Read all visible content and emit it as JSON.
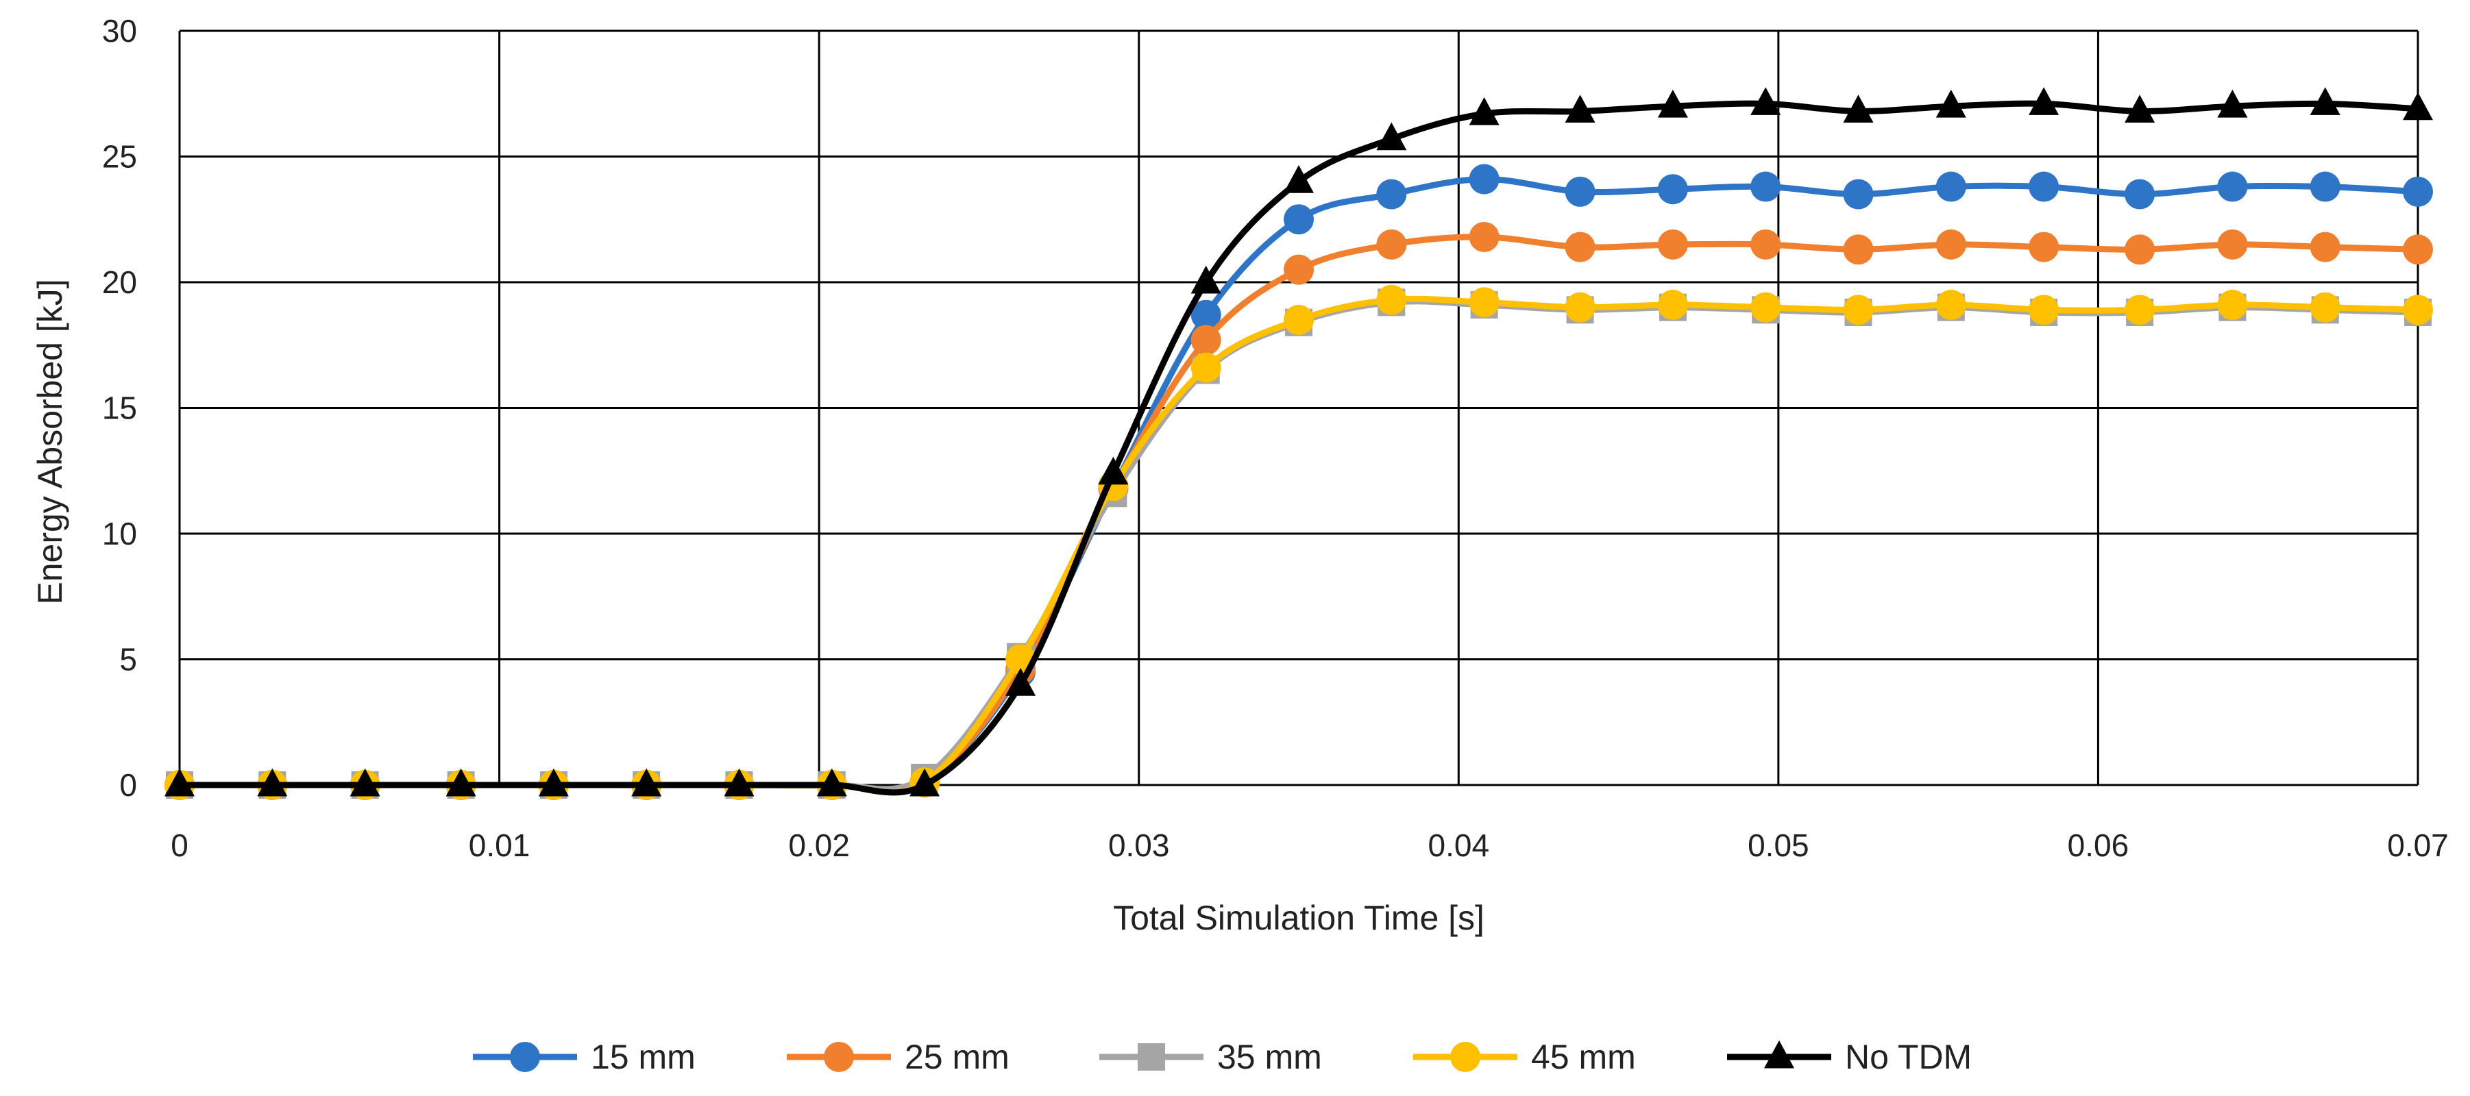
{
  "chart_data": {
    "type": "line",
    "title": "",
    "xlabel": "Total Simulation Time [s]",
    "ylabel": "Energy Absorbed [kJ]",
    "xlim": [
      0,
      0.07
    ],
    "ylim": [
      0,
      30
    ],
    "grid": true,
    "legend_position": "bottom",
    "x_ticks": [
      0,
      0.01,
      0.02,
      0.03,
      0.04,
      0.05,
      0.06,
      0.07
    ],
    "x_tick_labels": [
      "0",
      "0.01",
      "0.02",
      "0.03",
      "0.04",
      "0.05",
      "0.06",
      "0.07"
    ],
    "y_ticks": [
      0,
      5,
      10,
      15,
      20,
      25,
      30
    ],
    "y_tick_labels": [
      "0",
      "5",
      "10",
      "15",
      "20",
      "25",
      "30"
    ],
    "x": [
      0,
      0.0029,
      0.0058,
      0.0088,
      0.0117,
      0.0146,
      0.0175,
      0.0204,
      0.0233,
      0.0263,
      0.0292,
      0.0321,
      0.035,
      0.0379,
      0.0408,
      0.0438,
      0.0467,
      0.0496,
      0.0525,
      0.0554,
      0.0583,
      0.0613,
      0.0642,
      0.0671,
      0.07
    ],
    "series": [
      {
        "name": "15 mm",
        "color": "#2E75C8",
        "marker": "circle",
        "values": [
          0,
          0,
          0,
          0,
          0,
          0,
          0,
          0,
          0.1,
          4.5,
          11.8,
          18.7,
          22.5,
          23.5,
          24.1,
          23.6,
          23.7,
          23.8,
          23.5,
          23.8,
          23.8,
          23.5,
          23.8,
          23.8,
          23.6
        ]
      },
      {
        "name": "25 mm",
        "color": "#F07F2E",
        "marker": "circle",
        "values": [
          0,
          0,
          0,
          0,
          0,
          0,
          0,
          0,
          0.1,
          4.6,
          11.8,
          17.7,
          20.5,
          21.5,
          21.8,
          21.4,
          21.5,
          21.5,
          21.3,
          21.5,
          21.4,
          21.3,
          21.5,
          21.4,
          21.3
        ]
      },
      {
        "name": "35 mm",
        "color": "#A5A5A5",
        "marker": "square",
        "values": [
          0,
          0,
          0,
          0,
          0,
          0,
          0,
          0,
          0.3,
          5.1,
          11.6,
          16.5,
          18.4,
          19.2,
          19.1,
          18.9,
          19.0,
          18.9,
          18.8,
          19.0,
          18.8,
          18.8,
          19.0,
          18.9,
          18.8
        ]
      },
      {
        "name": "45 mm",
        "color": "#FFC000",
        "marker": "circle",
        "values": [
          0,
          0,
          0,
          0,
          0,
          0,
          0,
          0,
          0.1,
          5.0,
          11.9,
          16.6,
          18.5,
          19.3,
          19.2,
          19.0,
          19.1,
          19.0,
          18.9,
          19.1,
          18.9,
          18.9,
          19.1,
          19.0,
          18.9
        ]
      },
      {
        "name": "No TDM",
        "color": "#000000",
        "marker": "triangle",
        "values": [
          0,
          0,
          0,
          0,
          0,
          0,
          0,
          0,
          0,
          4.0,
          12.4,
          20.0,
          24.0,
          25.7,
          26.7,
          26.8,
          27.0,
          27.1,
          26.8,
          27.0,
          27.1,
          26.8,
          27.0,
          27.1,
          26.9
        ]
      }
    ]
  }
}
